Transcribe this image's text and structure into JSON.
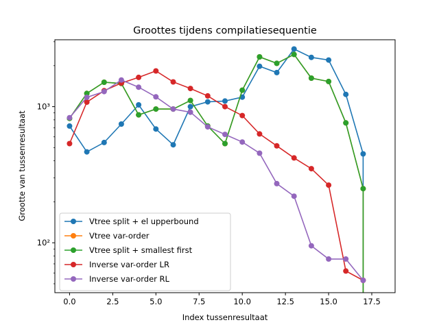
{
  "chart_data": {
    "type": "line",
    "title": "Groottes tijdens compilatiesequentie",
    "xlabel": "Index tussenresultaat",
    "ylabel": "Grootte van tussenresultaat",
    "yscale": "log",
    "xlim": [
      -0.85,
      18.85
    ],
    "ylim": [
      43,
      3100
    ],
    "x_ticks": [
      0,
      2.5,
      5,
      7.5,
      10,
      12.5,
      15,
      17.5
    ],
    "x_tick_labels": [
      "0.0",
      "2.5",
      "5.0",
      "7.5",
      "10.0",
      "12.5",
      "15.0",
      "17.5"
    ],
    "y_ticks": [
      100,
      1000
    ],
    "y_tick_labels": [
      "10²",
      "10³"
    ],
    "legend_position": "lower-left",
    "grid": false,
    "x": [
      0,
      1,
      2,
      3,
      4,
      5,
      6,
      7,
      8,
      9,
      10,
      11,
      12,
      13,
      14,
      15,
      16,
      17
    ],
    "series": [
      {
        "name": "Vtree split + el upperbound",
        "color": "#1f77b4",
        "values": [
          720,
          465,
          545,
          745,
          1030,
          685,
          525,
          1000,
          1085,
          1100,
          1175,
          1980,
          1780,
          2650,
          2300,
          2200,
          1230,
          450
        ],
        "drop_to_floor": true
      },
      {
        "name": "Vtree var-order",
        "color": "#ff7f0e",
        "values": [
          820,
          1250,
          1510,
          1480,
          870,
          960,
          960,
          1110,
          720,
          535,
          1320,
          2320,
          2080,
          2420,
          1620,
          1530,
          760,
          250
        ],
        "drop_to_floor": true
      },
      {
        "name": "Vtree split + smallest first",
        "color": "#2ca02c",
        "values": [
          820,
          1250,
          1510,
          1480,
          870,
          960,
          960,
          1110,
          720,
          535,
          1320,
          2320,
          2080,
          2420,
          1620,
          1530,
          760,
          250
        ],
        "drop_to_floor": true
      },
      {
        "name": "Inverse var-order LR",
        "color": "#d62728",
        "values": [
          535,
          1080,
          1310,
          1490,
          1640,
          1830,
          1520,
          1360,
          1200,
          1000,
          860,
          630,
          515,
          420,
          350,
          265,
          62,
          53
        ],
        "drop_to_floor": false
      },
      {
        "name": "Inverse var-order RL",
        "color": "#9467bd",
        "values": [
          830,
          1170,
          1290,
          1570,
          1390,
          1180,
          960,
          910,
          710,
          625,
          550,
          455,
          272,
          220,
          95,
          76,
          76,
          53
        ],
        "drop_to_floor": false
      }
    ]
  }
}
